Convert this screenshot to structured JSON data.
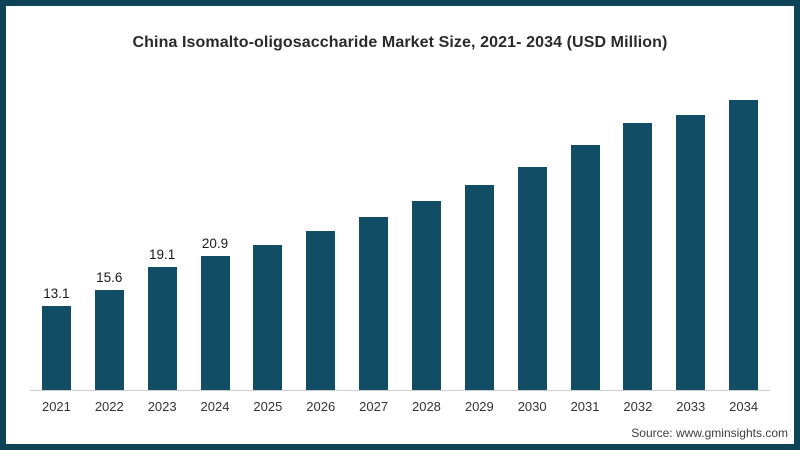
{
  "frame": {
    "border_color": "#0d4257",
    "background_color": "#ffffff"
  },
  "title": "China Isomalto-oligosaccharide Market Size, 2021- 2034 (USD Million)",
  "source": "Source: www.gminsights.com",
  "chart_data": {
    "type": "bar",
    "title": "China Isomalto-oligosaccharide Market Size, 2021- 2034 (USD Million)",
    "unit": "USD Million",
    "categories": [
      "2021",
      "2022",
      "2023",
      "2024",
      "2025",
      "2026",
      "2027",
      "2028",
      "2029",
      "2030",
      "2031",
      "2032",
      "2033",
      "2034"
    ],
    "values": [
      13.1,
      15.6,
      19.1,
      20.9,
      22.6,
      24.7,
      27.0,
      29.4,
      31.9,
      34.7,
      38.1,
      41.6,
      42.8,
      45.1
    ],
    "data_labels": [
      "13.1",
      "15.6",
      "19.1",
      "20.9",
      "",
      "",
      "",
      "",
      "",
      "",
      "",
      "",
      "",
      ""
    ],
    "xlabel": "",
    "ylabel": "",
    "ylim": [
      0,
      46.7
    ],
    "grid": false,
    "legend": false,
    "bar_color": "#114e66",
    "axis_line_color": "#cfcfcf"
  }
}
